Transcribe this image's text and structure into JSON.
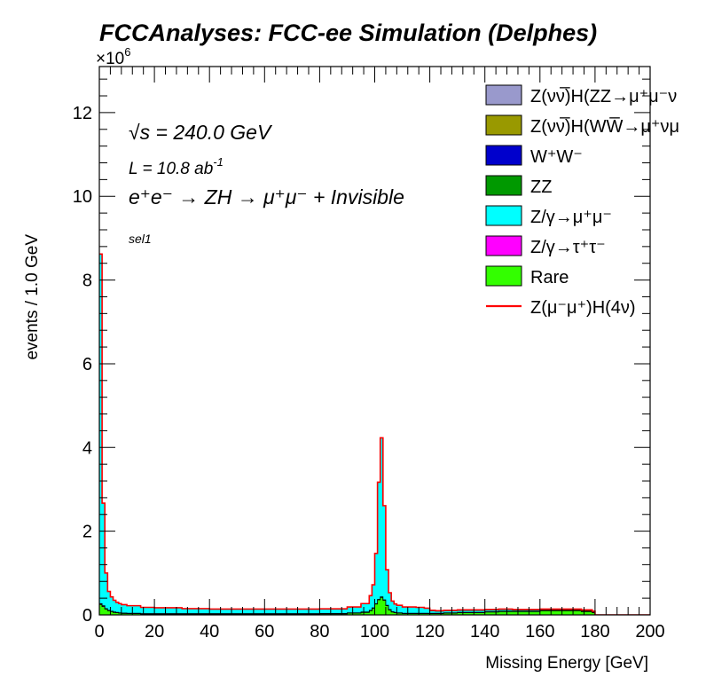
{
  "chart_data": {
    "type": "area",
    "title": "FCCAnalyses: FCC-ee Simulation (Delphes)",
    "ylabel": "events / 1.0 GeV",
    "xlabel": "Missing Energy [GeV]",
    "y_multiplier": "×10",
    "y_multiplier_exp": "6",
    "xlim": [
      0,
      200
    ],
    "ylim": [
      0,
      13.1
    ],
    "x_ticks": [
      "0",
      "20",
      "40",
      "60",
      "80",
      "100",
      "120",
      "140",
      "160",
      "180",
      "200"
    ],
    "y_ticks": [
      "0",
      "2",
      "4",
      "6",
      "8",
      "10",
      "12"
    ],
    "stacked": true,
    "annotations": {
      "sqrt_s": "√s = 240.0 GeV",
      "lumi": "L = 10.8 ab",
      "lumi_exp": "-1",
      "process": "e⁺e⁻ → ZH → μ⁺μ⁻ + Invisible",
      "selection": "sel1"
    },
    "x": [
      0,
      1,
      2,
      3,
      4,
      5,
      6,
      7,
      8,
      10,
      15,
      20,
      30,
      40,
      60,
      80,
      90,
      95,
      98,
      99,
      100,
      101,
      102,
      103,
      104,
      105,
      106,
      107,
      108,
      110,
      115,
      118,
      120,
      122,
      125,
      130,
      140,
      145,
      150,
      160,
      170,
      175,
      179,
      180,
      200
    ],
    "series": [
      {
        "name": "Rare",
        "color": "#33ff00",
        "values": [
          0.25,
          0.2,
          0.14,
          0.1,
          0.08,
          0.06,
          0.05,
          0.04,
          0.035,
          0.03,
          0.02,
          0.02,
          0.02,
          0.02,
          0.02,
          0.025,
          0.04,
          0.06,
          0.1,
          0.16,
          0.26,
          0.36,
          0.42,
          0.35,
          0.22,
          0.12,
          0.07,
          0.05,
          0.04,
          0.03,
          0.03,
          0.03,
          0.03,
          0.03,
          0.04,
          0.05,
          0.07,
          0.08,
          0.08,
          0.1,
          0.1,
          0.08,
          0.05,
          0.0,
          0.0
        ]
      },
      {
        "name": "Z/γ→τ⁺τ⁻",
        "color": "#ff00ff",
        "values": [
          0.02,
          0.02,
          0.01,
          0.01,
          0.01,
          0.01,
          0.01,
          0.01,
          0.01,
          0.01,
          0.01,
          0.01,
          0.01,
          0.01,
          0.01,
          0.01,
          0.01,
          0.01,
          0.01,
          0.01,
          0.01,
          0.01,
          0.01,
          0.01,
          0.01,
          0.01,
          0.01,
          0.01,
          0.01,
          0.01,
          0.01,
          0.01,
          0.01,
          0.01,
          0.01,
          0.01,
          0.01,
          0.01,
          0.01,
          0.01,
          0.01,
          0.01,
          0.01,
          0.0,
          0.0
        ]
      },
      {
        "name": "Z/γ→μ⁺μ⁻",
        "color": "#00ffff",
        "values": [
          8.35,
          2.45,
          0.85,
          0.45,
          0.34,
          0.28,
          0.24,
          0.22,
          0.2,
          0.18,
          0.15,
          0.14,
          0.12,
          0.11,
          0.11,
          0.11,
          0.14,
          0.2,
          0.35,
          0.55,
          1.2,
          2.8,
          3.8,
          2.25,
          0.85,
          0.4,
          0.25,
          0.2,
          0.18,
          0.15,
          0.14,
          0.12,
          0.06,
          0.05,
          0.05,
          0.05,
          0.04,
          0.04,
          0.03,
          0.02,
          0.02,
          0.02,
          0.02,
          0.0,
          0.0
        ]
      },
      {
        "name": "ZZ",
        "color": "#009900",
        "values": [
          0.0,
          0.0,
          0.0,
          0.0,
          0.0,
          0.0,
          0.0,
          0.0,
          0.0,
          0.0,
          0.0,
          0.0,
          0.0,
          0.0,
          0.0,
          0.0,
          0.0,
          0.0,
          0.0,
          0.0,
          0.0,
          0.0,
          0.0,
          0.0,
          0.0,
          0.0,
          0.0,
          0.0,
          0.0,
          0.0,
          0.0,
          0.0,
          0.01,
          0.01,
          0.01,
          0.01,
          0.01,
          0.01,
          0.01,
          0.01,
          0.01,
          0.01,
          0.01,
          0.0,
          0.0
        ]
      },
      {
        "name": "W⁺W⁻",
        "color": "#0000cc",
        "values": [
          0.0,
          0.0,
          0.0,
          0.0,
          0.0,
          0.0,
          0.0,
          0.0,
          0.0,
          0.0,
          0.0,
          0.0,
          0.0,
          0.0,
          0.0,
          0.0,
          0.0,
          0.0,
          0.0,
          0.0,
          0.0,
          0.0,
          0.0,
          0.0,
          0.0,
          0.0,
          0.0,
          0.0,
          0.0,
          0.0,
          0.0,
          0.0,
          0.0,
          0.0,
          0.0,
          0.0,
          0.0,
          0.0,
          0.0,
          0.0,
          0.0,
          0.0,
          0.0,
          0.0,
          0.0
        ]
      },
      {
        "name": "Z(νν̅)H(WW̅→μ⁺νμ",
        "color": "#999900",
        "values": [
          0.0,
          0.0,
          0.0,
          0.0,
          0.0,
          0.0,
          0.0,
          0.0,
          0.0,
          0.0,
          0.0,
          0.0,
          0.0,
          0.0,
          0.0,
          0.0,
          0.0,
          0.0,
          0.0,
          0.0,
          0.0,
          0.0,
          0.0,
          0.0,
          0.0,
          0.0,
          0.0,
          0.0,
          0.0,
          0.0,
          0.0,
          0.0,
          0.0,
          0.0,
          0.0,
          0.0,
          0.0,
          0.0,
          0.0,
          0.0,
          0.0,
          0.0,
          0.0,
          0.0,
          0.0
        ]
      },
      {
        "name": "Z(νν̅)H(ZZ→μ⁺μ⁻ν",
        "color": "#9999cc",
        "values": [
          0.0,
          0.0,
          0.0,
          0.0,
          0.0,
          0.0,
          0.0,
          0.0,
          0.0,
          0.0,
          0.0,
          0.0,
          0.0,
          0.0,
          0.0,
          0.0,
          0.0,
          0.0,
          0.0,
          0.0,
          0.0,
          0.0,
          0.0,
          0.0,
          0.0,
          0.0,
          0.0,
          0.0,
          0.0,
          0.0,
          0.0,
          0.0,
          0.0,
          0.0,
          0.0,
          0.0,
          0.0,
          0.0,
          0.0,
          0.0,
          0.0,
          0.0,
          0.0,
          0.0,
          0.0
        ]
      }
    ],
    "signal": {
      "name": "Z(μ⁻μ⁺)H(4ν)",
      "color": "#ff0000",
      "style": "line",
      "values": [
        0.0,
        0.0,
        0.0,
        0.0,
        0.0,
        0.0,
        0.0,
        0.0,
        0.0,
        0.0,
        0.0,
        0.0,
        0.0,
        0.0,
        0.0,
        0.0,
        0.0,
        0.0,
        0.0,
        0.0,
        0.0,
        0.0,
        0.0,
        0.0,
        0.0,
        0.0,
        0.0,
        0.0,
        0.0,
        0.0,
        0.0,
        0.0,
        0.0,
        0.0,
        0.0,
        0.0,
        0.0,
        0.0,
        0.0,
        0.0,
        0.0,
        0.0,
        0.0,
        0.0,
        0.0
      ]
    },
    "legend": {
      "position": "top-right",
      "order": [
        "Z(νν̅)H(ZZ→μ⁺μ⁻ν",
        "Z(νν̅)H(WW̅→μ⁺νμ",
        "W⁺W⁻",
        "ZZ",
        "Z/γ→μ⁺μ⁻",
        "Z/γ→τ⁺τ⁻",
        "Rare",
        "Z(μ⁻μ⁺)H(4ν)"
      ]
    },
    "grid": false
  }
}
